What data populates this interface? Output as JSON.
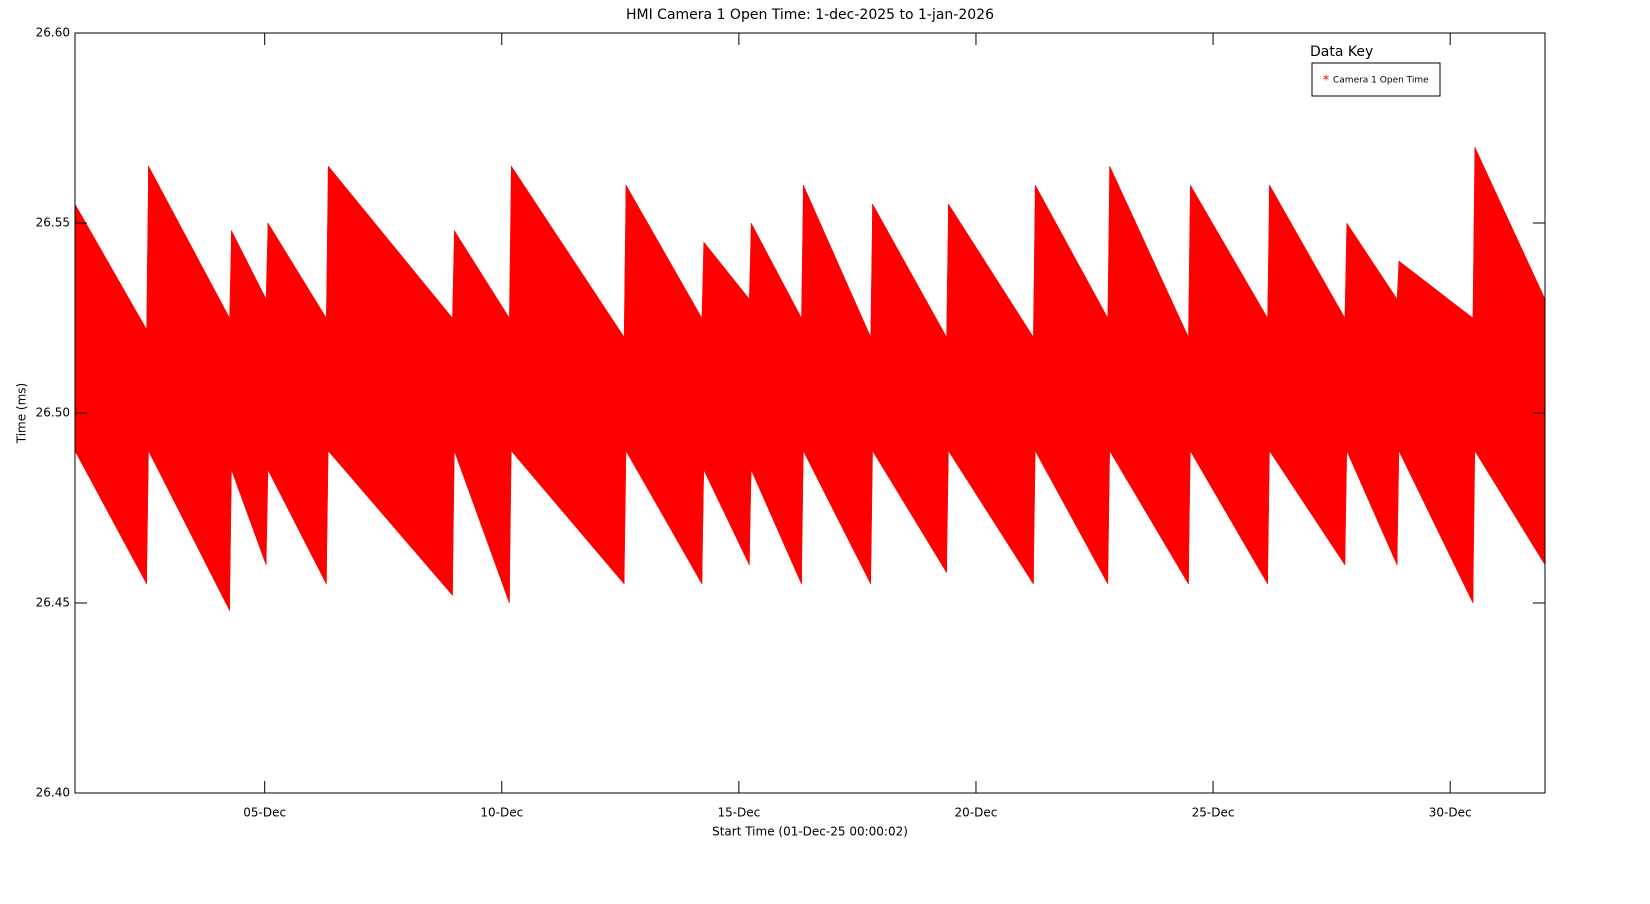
{
  "chart_data": {
    "type": "band",
    "title": "HMI Camera 1 Open Time: 1-dec-2025 to 1-jan-2026",
    "x_label": "Start Time (01-Dec-25 00:00:02)",
    "y_label": "Time (ms)",
    "legend_title": "Data Key",
    "xlim": [
      0,
      31
    ],
    "xticks": [
      {
        "value": 4,
        "label": "05-Dec"
      },
      {
        "value": 9,
        "label": "10-Dec"
      },
      {
        "value": 14,
        "label": "15-Dec"
      },
      {
        "value": 19,
        "label": "20-Dec"
      },
      {
        "value": 24,
        "label": "25-Dec"
      },
      {
        "value": 29,
        "label": "30-Dec"
      }
    ],
    "ylim": [
      26.4,
      26.6
    ],
    "yticks": [
      {
        "value": 26.4,
        "label": "26.40"
      },
      26.45,
      {
        "value": 26.5,
        "label": "26.50"
      },
      26.55,
      {
        "value": 26.6,
        "label": "26.60"
      }
    ],
    "x": [
      0,
      1.51,
      1.55,
      3.26,
      3.3,
      4.03,
      4.07,
      5.3,
      5.34,
      7.96,
      8.0,
      9.16,
      9.2,
      11.58,
      11.62,
      13.22,
      13.26,
      14.22,
      14.26,
      15.32,
      15.36,
      16.78,
      16.82,
      18.38,
      18.42,
      20.21,
      20.25,
      21.78,
      21.82,
      23.48,
      23.52,
      25.15,
      25.19,
      26.78,
      26.82,
      27.88,
      27.92,
      29.48,
      29.52,
      31
    ],
    "series": [
      {
        "name": "Camera 1 Open Time",
        "color": "#ff0000",
        "high": [
          26.555,
          26.522,
          26.565,
          26.525,
          26.548,
          26.53,
          26.55,
          26.525,
          26.565,
          26.525,
          26.548,
          26.525,
          26.565,
          26.52,
          26.56,
          26.525,
          26.545,
          26.53,
          26.55,
          26.525,
          26.56,
          26.52,
          26.555,
          26.52,
          26.555,
          26.52,
          26.56,
          26.525,
          26.565,
          26.52,
          26.56,
          26.525,
          26.56,
          26.525,
          26.55,
          26.53,
          26.54,
          26.525,
          26.57,
          26.53
        ],
        "low": [
          26.49,
          26.455,
          26.49,
          26.448,
          26.485,
          26.46,
          26.485,
          26.455,
          26.49,
          26.452,
          26.49,
          26.45,
          26.49,
          26.455,
          26.49,
          26.455,
          26.485,
          26.46,
          26.485,
          26.455,
          26.49,
          26.455,
          26.49,
          26.458,
          26.49,
          26.455,
          26.49,
          26.455,
          26.49,
          26.455,
          26.49,
          26.455,
          26.49,
          26.46,
          26.49,
          26.46,
          26.49,
          26.45,
          26.49,
          26.46
        ]
      }
    ]
  }
}
